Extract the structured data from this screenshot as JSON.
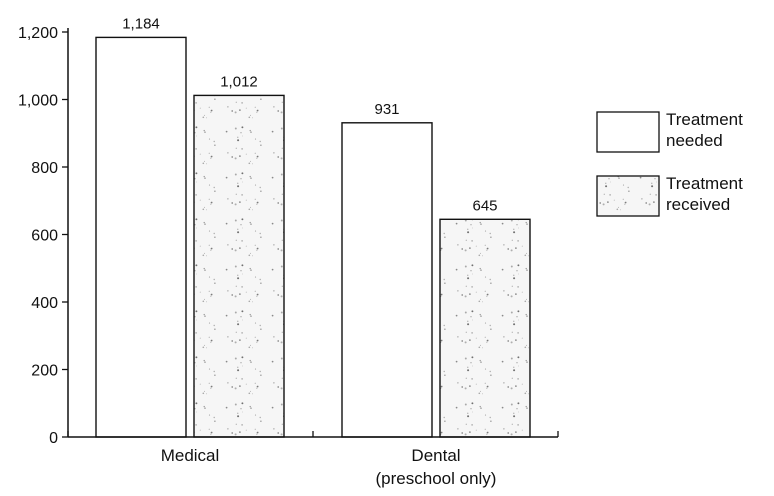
{
  "chart_data": {
    "type": "bar",
    "categories": [
      "Medical",
      "Dental"
    ],
    "category_labels": [
      [
        "Medical"
      ],
      [
        "Dental",
        "(preschool only)"
      ]
    ],
    "series": [
      {
        "name": "Treatment needed",
        "legend_lines": [
          "Treatment",
          "needed"
        ],
        "values": [
          1184,
          931
        ],
        "value_labels": [
          "1,184",
          "931"
        ],
        "fill": "#ffffff",
        "pattern": "none"
      },
      {
        "name": "Treatment received",
        "legend_lines": [
          "Treatment",
          "received"
        ],
        "values": [
          1012,
          645
        ],
        "value_labels": [
          "1,012",
          "645"
        ],
        "fill": "#f4f4f4",
        "pattern": "speckled"
      }
    ],
    "y_ticks": [
      0,
      200,
      400,
      600,
      800,
      1000,
      1200
    ],
    "y_tick_labels": [
      "0",
      "200",
      "400",
      "600",
      "800",
      "1,000",
      "1,200"
    ],
    "ylim": [
      0,
      1200
    ],
    "title": "",
    "xlabel": "",
    "ylabel": "",
    "legend_position": "right",
    "grid": false,
    "colors": {
      "stroke": "#111111",
      "background": "#ffffff",
      "speckle": "#555555"
    }
  }
}
